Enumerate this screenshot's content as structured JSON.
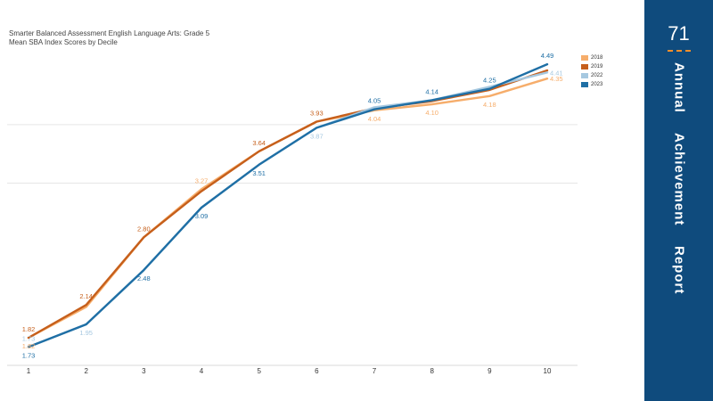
{
  "chart_data": {
    "type": "line",
    "title": "Smarter Balanced Assessment English Language Arts: Grade 5",
    "subtitle": "Mean SBA Index Scores by Decile",
    "x": [
      1,
      2,
      3,
      4,
      5,
      6,
      7,
      8,
      9,
      10
    ],
    "ylim": [
      1.55,
      4.7
    ],
    "gridlines": [
      3.33,
      3.9
    ],
    "grid": true,
    "legend_position": "top-right",
    "series": [
      {
        "name": "2018",
        "color": "#f6ad6b",
        "values": [
          1.82,
          2.12,
          2.8,
          3.27,
          3.64,
          3.93,
          4.04,
          4.1,
          4.18,
          4.35
        ]
      },
      {
        "name": "2019",
        "color": "#c65f1b",
        "values": [
          1.82,
          2.14,
          2.8,
          3.25,
          3.64,
          3.93,
          4.06,
          4.13,
          4.24,
          4.43
        ]
      },
      {
        "name": "2022",
        "color": "#a6c8e0",
        "values": [
          1.73,
          1.95,
          2.48,
          3.09,
          3.51,
          3.87,
          4.07,
          4.14,
          4.27,
          4.41
        ]
      },
      {
        "name": "2023",
        "color": "#1f6fa5",
        "values": [
          1.73,
          1.95,
          2.48,
          3.09,
          3.51,
          3.87,
          4.05,
          4.14,
          4.25,
          4.49
        ]
      }
    ],
    "data_labels": [
      {
        "series": "2019",
        "x": 1,
        "text": "1.82",
        "pos": "above"
      },
      {
        "series": "2018",
        "x": 1,
        "text": "1.82",
        "pos": "below"
      },
      {
        "series": "2022",
        "x": 1,
        "text": "1.73",
        "pos": "above"
      },
      {
        "series": "2023",
        "x": 1,
        "text": "1.73",
        "pos": "below"
      },
      {
        "series": "2019",
        "x": 2,
        "text": "2.14",
        "pos": "above"
      },
      {
        "series": "2022",
        "x": 2,
        "text": "1.95",
        "pos": "below"
      },
      {
        "series": "2019",
        "x": 3,
        "text": "2.80",
        "pos": "above"
      },
      {
        "series": "2023",
        "x": 3,
        "text": "2.48",
        "pos": "below"
      },
      {
        "series": "2018",
        "x": 4,
        "text": "3.27",
        "pos": "above"
      },
      {
        "series": "2023",
        "x": 4,
        "text": "3.09",
        "pos": "below"
      },
      {
        "series": "2019",
        "x": 5,
        "text": "3.64",
        "pos": "above"
      },
      {
        "series": "2023",
        "x": 5,
        "text": "3.51",
        "pos": "below"
      },
      {
        "series": "2019",
        "x": 6,
        "text": "3.93",
        "pos": "above"
      },
      {
        "series": "2022",
        "x": 6,
        "text": "3.87",
        "pos": "below"
      },
      {
        "series": "2023",
        "x": 7,
        "text": "4.05",
        "pos": "above"
      },
      {
        "series": "2018",
        "x": 7,
        "text": "4.04",
        "pos": "below"
      },
      {
        "series": "2023",
        "x": 8,
        "text": "4.14",
        "pos": "above"
      },
      {
        "series": "2018",
        "x": 8,
        "text": "4.10",
        "pos": "below"
      },
      {
        "series": "2023",
        "x": 9,
        "text": "4.25",
        "pos": "above"
      },
      {
        "series": "2018",
        "x": 9,
        "text": "4.18",
        "pos": "below"
      },
      {
        "series": "2023",
        "x": 10,
        "text": "4.49",
        "pos": "above"
      },
      {
        "series": "2022",
        "x": 10,
        "text": "4.41",
        "pos": "right"
      },
      {
        "series": "2018",
        "x": 10,
        "text": "4.35",
        "pos": "right"
      }
    ]
  },
  "side_panel": {
    "page_number": "71",
    "words": [
      "Annual",
      "Achievement",
      "Report"
    ]
  }
}
